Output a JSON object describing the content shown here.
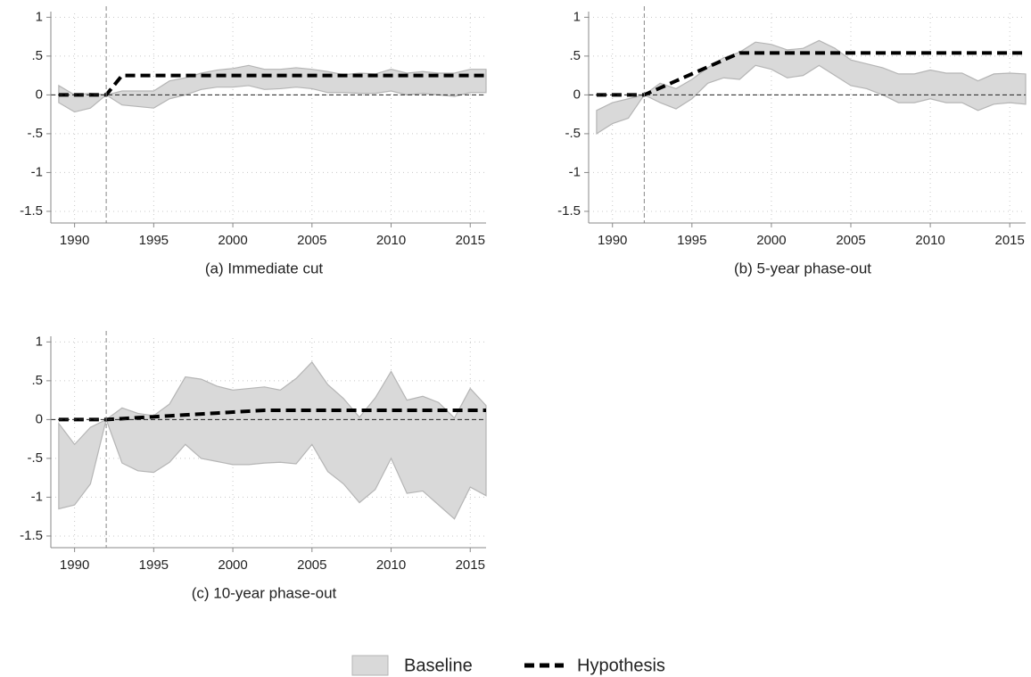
{
  "chart_data": [
    {
      "type": "band",
      "title": "(a) Immediate cut",
      "x": [
        1989,
        1990,
        1991,
        1992,
        1993,
        1994,
        1995,
        1996,
        1997,
        1998,
        1999,
        2000,
        2001,
        2002,
        2003,
        2004,
        2005,
        2006,
        2007,
        2008,
        2009,
        2010,
        2011,
        2012,
        2013,
        2014,
        2015,
        2016
      ],
      "series": [
        {
          "name": "Baseline",
          "color": "#d9d9d9",
          "upper": [
            0.12,
            0,
            0.02,
            0,
            0.05,
            0.05,
            0.05,
            0.18,
            0.22,
            0.28,
            0.32,
            0.34,
            0.38,
            0.33,
            0.33,
            0.35,
            0.33,
            0.3,
            0.26,
            0.28,
            0.27,
            0.33,
            0.28,
            0.3,
            0.28,
            0.28,
            0.33,
            0.33
          ],
          "lower": [
            -0.1,
            -0.22,
            -0.17,
            0,
            -0.13,
            -0.15,
            -0.17,
            -0.05,
            0,
            0.07,
            0.1,
            0.1,
            0.12,
            0.07,
            0.08,
            0.1,
            0.08,
            0.03,
            0.03,
            0.02,
            0.02,
            0.05,
            0,
            0.02,
            0,
            -0.02,
            0.03,
            0.03
          ]
        },
        {
          "name": "Hypothesis",
          "color": "#000000",
          "values": [
            0,
            0,
            0,
            0,
            0.25,
            0.25,
            0.25,
            0.25,
            0.25,
            0.25,
            0.25,
            0.25,
            0.25,
            0.25,
            0.25,
            0.25,
            0.25,
            0.25,
            0.25,
            0.25,
            0.25,
            0.25,
            0.25,
            0.25,
            0.25,
            0.25,
            0.25,
            0.25
          ]
        }
      ],
      "xlim": [
        1988.5,
        2016
      ],
      "ylim": [
        -1.65,
        1.05
      ],
      "xticks": [
        1990,
        1995,
        2000,
        2005,
        2010,
        2015
      ],
      "yticks": [
        1,
        {
          "value": 0.5,
          "label": ".5"
        },
        0,
        {
          "value": -0.5,
          "label": "-.5"
        },
        -1,
        -1.5
      ],
      "grid": true,
      "hline": 0,
      "vline": 1992
    },
    {
      "type": "band",
      "title": "(b) 5-year phase-out",
      "x": [
        1989,
        1990,
        1991,
        1992,
        1993,
        1994,
        1995,
        1996,
        1997,
        1998,
        1999,
        2000,
        2001,
        2002,
        2003,
        2004,
        2005,
        2006,
        2007,
        2008,
        2009,
        2010,
        2011,
        2012,
        2013,
        2014,
        2015,
        2016
      ],
      "series": [
        {
          "name": "Baseline",
          "color": "#d9d9d9",
          "upper": [
            -0.2,
            -0.1,
            -0.05,
            0,
            0.15,
            0.08,
            0.2,
            0.35,
            0.48,
            0.55,
            0.68,
            0.65,
            0.58,
            0.6,
            0.7,
            0.6,
            0.45,
            0.4,
            0.35,
            0.27,
            0.27,
            0.32,
            0.28,
            0.28,
            0.18,
            0.27,
            0.28,
            0.27
          ],
          "lower": [
            -0.5,
            -0.37,
            -0.3,
            0,
            -0.1,
            -0.18,
            -0.05,
            0.15,
            0.22,
            0.2,
            0.38,
            0.33,
            0.22,
            0.25,
            0.38,
            0.25,
            0.12,
            0.08,
            0,
            -0.1,
            -0.1,
            -0.05,
            -0.1,
            -0.1,
            -0.2,
            -0.12,
            -0.1,
            -0.12
          ]
        },
        {
          "name": "Hypothesis",
          "color": "#000000",
          "values": [
            0,
            0,
            0,
            0,
            0.09,
            0.18,
            0.27,
            0.36,
            0.45,
            0.54,
            0.54,
            0.54,
            0.54,
            0.54,
            0.54,
            0.54,
            0.54,
            0.54,
            0.54,
            0.54,
            0.54,
            0.54,
            0.54,
            0.54,
            0.54,
            0.54,
            0.54,
            0.54
          ]
        }
      ],
      "xlim": [
        1988.5,
        2016
      ],
      "ylim": [
        -1.65,
        1.05
      ],
      "xticks": [
        1990,
        1995,
        2000,
        2005,
        2010,
        2015
      ],
      "yticks": [
        1,
        {
          "value": 0.5,
          "label": ".5"
        },
        0,
        {
          "value": -0.5,
          "label": "-.5"
        },
        -1,
        -1.5
      ],
      "grid": true,
      "hline": 0,
      "vline": 1992
    },
    {
      "type": "band",
      "title": "(c) 10-year phase-out",
      "x": [
        1989,
        1990,
        1991,
        1992,
        1993,
        1994,
        1995,
        1996,
        1997,
        1998,
        1999,
        2000,
        2001,
        2002,
        2003,
        2004,
        2005,
        2006,
        2007,
        2008,
        2009,
        2010,
        2011,
        2012,
        2013,
        2014,
        2015,
        2016
      ],
      "series": [
        {
          "name": "Baseline",
          "color": "#d9d9d9",
          "upper": [
            -0.05,
            -0.32,
            -0.1,
            0,
            0.15,
            0.08,
            0.05,
            0.2,
            0.55,
            0.52,
            0.43,
            0.38,
            0.4,
            0.42,
            0.38,
            0.53,
            0.74,
            0.45,
            0.27,
            0.03,
            0.28,
            0.62,
            0.25,
            0.3,
            0.22,
            0.02,
            0.4,
            0.18
          ],
          "lower": [
            -1.15,
            -1.1,
            -0.83,
            0,
            -0.56,
            -0.66,
            -0.68,
            -0.55,
            -0.32,
            -0.5,
            -0.54,
            -0.58,
            -0.58,
            -0.56,
            -0.55,
            -0.57,
            -0.32,
            -0.67,
            -0.83,
            -1.07,
            -0.9,
            -0.5,
            -0.95,
            -0.92,
            -1.1,
            -1.28,
            -0.87,
            -0.98
          ]
        },
        {
          "name": "Hypothesis",
          "color": "#000000",
          "values": [
            0,
            0,
            0,
            0,
            0.012,
            0.024,
            0.036,
            0.048,
            0.06,
            0.072,
            0.084,
            0.096,
            0.108,
            0.12,
            0.12,
            0.12,
            0.12,
            0.12,
            0.12,
            0.12,
            0.12,
            0.12,
            0.12,
            0.12,
            0.12,
            0.12,
            0.12,
            0.12
          ]
        }
      ],
      "xlim": [
        1988.5,
        2016
      ],
      "ylim": [
        -1.65,
        1.05
      ],
      "xticks": [
        1990,
        1995,
        2000,
        2005,
        2010,
        2015
      ],
      "yticks": [
        1,
        {
          "value": 0.5,
          "label": ".5"
        },
        0,
        {
          "value": -0.5,
          "label": "-.5"
        },
        -1,
        -1.5
      ],
      "grid": true,
      "hline": 0,
      "vline": 1992
    }
  ]
}
